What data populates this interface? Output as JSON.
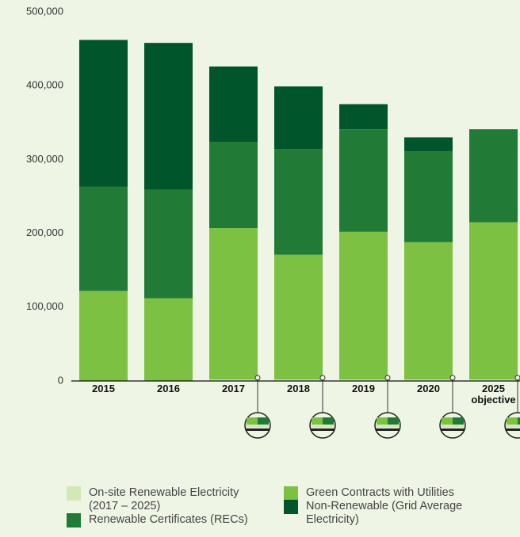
{
  "chart_data": {
    "type": "stacked-bar",
    "categories": [
      "2015",
      "2016",
      "2017",
      "2018",
      "2019",
      "2020",
      "2025 objective"
    ],
    "series": [
      {
        "name": "On-site Renewable Electricity (2017 – 2025)",
        "color": "#d3e8b8",
        "values": [
          0,
          0,
          2000,
          2000,
          2000,
          2000,
          2000
        ]
      },
      {
        "name": "Green Contracts with Utilities",
        "color": "#7dc142",
        "values": [
          122000,
          112000,
          205000,
          169000,
          200000,
          186000,
          213000
        ]
      },
      {
        "name": "Renewable Certificates (RECs)",
        "color": "#217a36",
        "values": [
          141000,
          147000,
          117000,
          143000,
          139000,
          123000,
          126000
        ]
      },
      {
        "name": "Non-Renewable (Grid Average Electricity)",
        "color": "#00552a",
        "values": [
          199000,
          199000,
          102000,
          85000,
          34000,
          19000,
          0
        ]
      }
    ],
    "ylim": [
      0,
      500000
    ],
    "yticks": [
      0,
      {
        "value": 100000,
        "label": "100,000"
      },
      {
        "value": 200000,
        "label": "200,000"
      },
      {
        "value": 300000,
        "label": "300,000"
      },
      {
        "value": 400000,
        "label": "400,000"
      },
      {
        "value": 500000,
        "label": "500,000"
      }
    ]
  }
}
